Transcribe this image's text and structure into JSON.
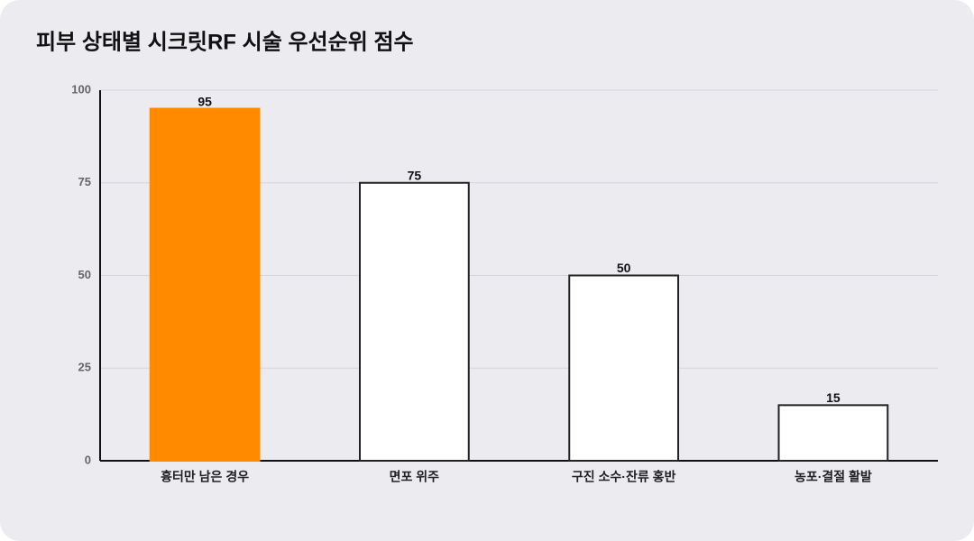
{
  "chart_data": {
    "type": "bar",
    "title": "피부 상태별 시크릿RF 시술 우선순위 점수",
    "categories": [
      "흉터만 남은 경우",
      "면포 위주",
      "구진 소수·잔류 홍반",
      "농포·결절 활발"
    ],
    "values": [
      95,
      75,
      50,
      15
    ],
    "colors": [
      "#ff8a00",
      "#ffffff",
      "#ffffff",
      "#ffffff"
    ],
    "edgecolor": "#222222",
    "ylim": [
      0,
      100
    ],
    "yticks": [
      0,
      25,
      50,
      75,
      100
    ],
    "grid": true
  }
}
